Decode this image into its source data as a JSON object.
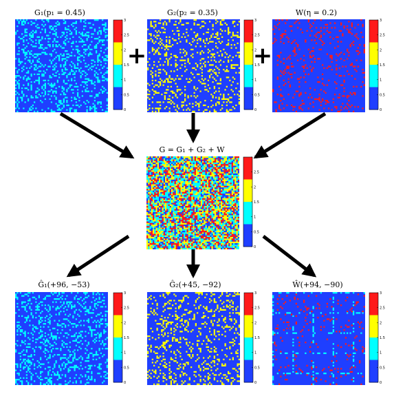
{
  "panels": [
    {
      "id": "g1",
      "title": "G₁(p₁ = 0.45)",
      "dots": "cyan",
      "density": 0.45
    },
    {
      "id": "g2",
      "title": "G₂(p₂ = 0.35)",
      "dots": "yellow",
      "density": 0.35
    },
    {
      "id": "w",
      "title": "W(η = 0.2)",
      "dots": "red",
      "density": 0.2
    },
    {
      "id": "g",
      "title": "G = G₁ + G₂ + W",
      "dots": "mixed",
      "density": 0.9
    },
    {
      "id": "g1h",
      "title": "Ĝ₁(+96, −53)",
      "dots": "cyan",
      "density": 0.4
    },
    {
      "id": "g2h",
      "title": "Ĝ₂(+45, −92)",
      "dots": "yellow",
      "density": 0.35
    },
    {
      "id": "wh",
      "title": "Ŵ(+94, −90)",
      "dots": "red",
      "density": 0.12
    }
  ],
  "operators": [
    "+",
    "+"
  ],
  "colorbar": {
    "ticks": [
      "3",
      "2.5",
      "2",
      "1.5",
      "1",
      "0.5",
      "0"
    ],
    "bands": [
      "#ff1a1a",
      "#ffff00",
      "#00ffff",
      "#1f3fff"
    ]
  },
  "colors": {
    "background_matrix": "#1f3fff",
    "cyan": "#00ffff",
    "yellow": "#ffff00",
    "red": "#ff1a1a",
    "arrow": "#000000"
  }
}
